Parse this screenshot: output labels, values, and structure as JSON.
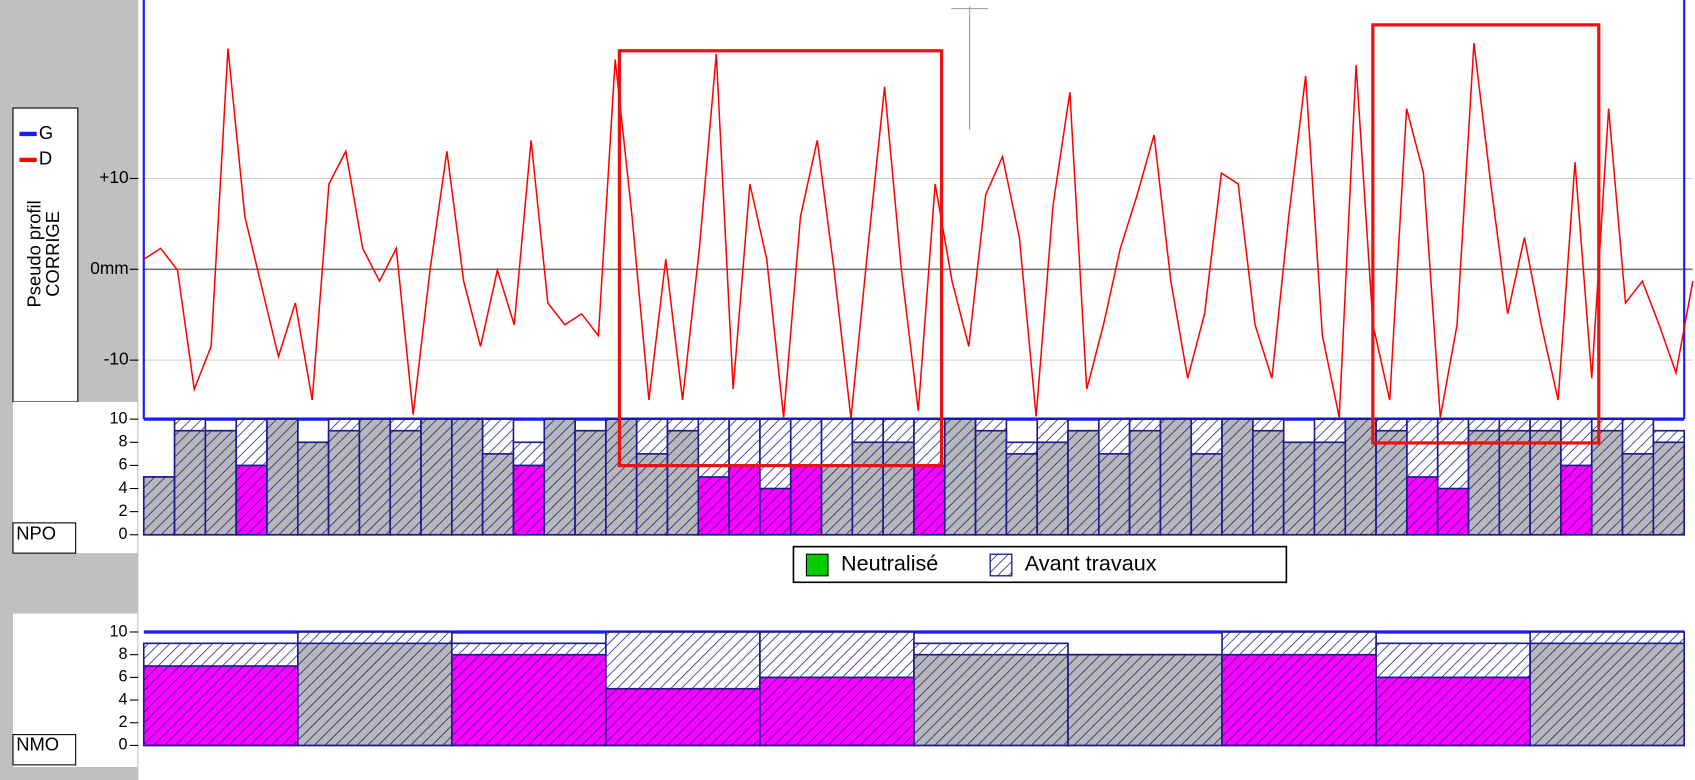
{
  "chart_data": [
    {
      "type": "line",
      "ylabel": [
        "Pseudo profil",
        "CORRIGE"
      ],
      "series": [
        {
          "name": "G",
          "color": "#1a1aff",
          "values": []
        },
        {
          "name": "D",
          "color": "#ff0000",
          "values": [
            1.1,
            2.3,
            -0.1,
            -13.2,
            -8.5,
            24.3,
            5.8,
            -1.9,
            -9.6,
            -3.7,
            -14.4,
            9.4,
            13.0,
            2.3,
            -1.3,
            2.3,
            -16.0,
            -0.1,
            13.0,
            -1.3,
            -8.5,
            -0.1,
            -6.1,
            14.2,
            -3.7,
            -6.1,
            -4.9,
            -7.3,
            23.1,
            5.8,
            -14.4,
            1.1,
            -14.4,
            2.3,
            23.7,
            -13.2,
            9.4,
            1.1,
            -16.3,
            5.8,
            14.2,
            -0.1,
            -16.4,
            2.3,
            20.1,
            -0.1,
            -15.6,
            9.4,
            -1.3,
            -8.5,
            8.2,
            12.4,
            3.5,
            -16.2,
            7.0,
            19.5,
            -13.2,
            -6.1,
            2.3,
            8.2,
            14.8,
            -1.3,
            -12.0,
            -4.9,
            10.6,
            9.4,
            -6.1,
            -12.0,
            5.8,
            21.3,
            -7.3,
            -16.3,
            22.5,
            -6.1,
            -14.4,
            17.7,
            10.6,
            -16.3,
            -6.1,
            24.9,
            9.4,
            -4.9,
            3.5,
            -6.1,
            -14.4,
            11.8,
            -12.0,
            17.7,
            -3.7,
            -1.3,
            -6.1,
            -11.4,
            -1.3
          ]
        }
      ],
      "ylim": [
        -16.5,
        28.7
      ],
      "yticks": [
        {
          "value": 10,
          "label": "+10"
        },
        {
          "value": 0,
          "label": "0mm"
        },
        {
          "value": -10,
          "label": "-10"
        }
      ],
      "grid": true
    },
    {
      "type": "bar",
      "title": "NPO",
      "values": [
        5,
        9,
        9,
        6,
        10,
        8,
        9,
        10,
        9,
        10,
        10,
        7,
        6,
        10,
        9,
        10,
        7,
        9,
        5,
        6,
        4,
        6,
        6,
        8,
        8,
        6,
        10,
        9,
        7,
        8,
        9,
        7,
        9,
        10,
        7,
        10,
        9,
        8,
        8,
        10,
        9,
        5,
        4,
        9,
        9,
        9,
        6,
        9,
        7,
        8
      ],
      "bar_colors": [
        "#b8b8b8",
        "#b8b8b8",
        "#b8b8b8",
        "#ff00ff",
        "#b8b8b8",
        "#b8b8b8",
        "#b8b8b8",
        "#b8b8b8",
        "#b8b8b8",
        "#b8b8b8",
        "#b8b8b8",
        "#b8b8b8",
        "#ff00ff",
        "#b8b8b8",
        "#b8b8b8",
        "#b8b8b8",
        "#b8b8b8",
        "#b8b8b8",
        "#ff00ff",
        "#ff00ff",
        "#ff00ff",
        "#ff00ff",
        "#b8b8b8",
        "#b8b8b8",
        "#b8b8b8",
        "#ff00ff",
        "#b8b8b8",
        "#b8b8b8",
        "#b8b8b8",
        "#b8b8b8",
        "#b8b8b8",
        "#b8b8b8",
        "#b8b8b8",
        "#b8b8b8",
        "#b8b8b8",
        "#b8b8b8",
        "#b8b8b8",
        "#b8b8b8",
        "#b8b8b8",
        "#b8b8b8",
        "#b8b8b8",
        "#ff00ff",
        "#ff00ff",
        "#b8b8b8",
        "#b8b8b8",
        "#b8b8b8",
        "#ff00ff",
        "#b8b8b8",
        "#b8b8b8",
        "#b8b8b8"
      ],
      "before_values": [
        5,
        10,
        9,
        10,
        10,
        8,
        10,
        10,
        10,
        10,
        10,
        10,
        8,
        10,
        9,
        10,
        10,
        10,
        10,
        10,
        10,
        10,
        10,
        10,
        10,
        10,
        10,
        10,
        8,
        10,
        9,
        10,
        10,
        10,
        10,
        10,
        10,
        8,
        10,
        10,
        10,
        10,
        10,
        10,
        10,
        10,
        10,
        10,
        10,
        9
      ],
      "ylim": [
        0,
        10
      ],
      "yticks": [
        0,
        2,
        4,
        6,
        8,
        10
      ]
    },
    {
      "type": "bar",
      "title": "NMO",
      "values": [
        7,
        9,
        8,
        5,
        6,
        8,
        8,
        8,
        6,
        9
      ],
      "bar_colors": [
        "#ff00ff",
        "#b8b8b8",
        "#ff00ff",
        "#ff00ff",
        "#ff00ff",
        "#b8b8b8",
        "#b8b8b8",
        "#ff00ff",
        "#ff00ff",
        "#b8b8b8"
      ],
      "before_values": [
        9,
        10,
        9,
        10,
        10,
        9,
        8,
        10,
        9,
        10
      ],
      "ylim": [
        0,
        10
      ],
      "yticks": [
        0,
        2,
        4,
        6,
        8,
        10
      ]
    }
  ],
  "legend": [
    {
      "name": "Neutralisé",
      "color": "#00cc00"
    },
    {
      "name": "Avant travaux",
      "color": "#1a1a8c"
    }
  ]
}
